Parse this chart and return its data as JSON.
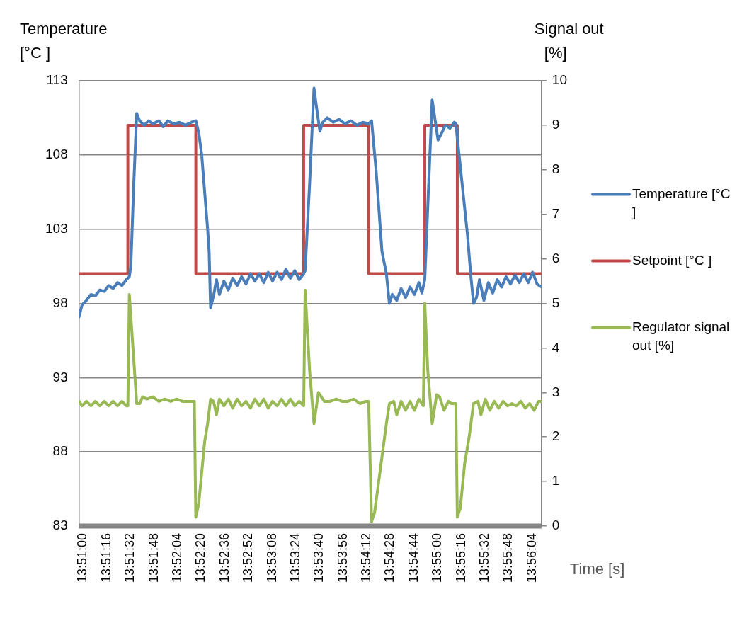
{
  "chart_data": {
    "type": "line",
    "xlabel": "Time [s]",
    "ylabel": "Temperature [°C ]",
    "y2label": "Signal out [%]",
    "xlim": [
      13.84944,
      13.93639
    ],
    "xticks": [
      {
        "value": 13.85,
        "label": "13:51:00"
      },
      {
        "value": 13.85444,
        "label": "13:51:16"
      },
      {
        "value": 13.85889,
        "label": "13:51:32"
      },
      {
        "value": 13.86333,
        "label": "13:51:48"
      },
      {
        "value": 13.86778,
        "label": "13:52:04"
      },
      {
        "value": 13.87222,
        "label": "13:52:20"
      },
      {
        "value": 13.87667,
        "label": "13:52:36"
      },
      {
        "value": 13.88111,
        "label": "13:52:52"
      },
      {
        "value": 13.88556,
        "label": "13:53:08"
      },
      {
        "value": 13.89,
        "label": "13:53:24"
      },
      {
        "value": 13.89444,
        "label": "13:53:40"
      },
      {
        "value": 13.89889,
        "label": "13:53:56"
      },
      {
        "value": 13.90333,
        "label": "13:54:12"
      },
      {
        "value": 13.90778,
        "label": "13:54:28"
      },
      {
        "value": 13.91222,
        "label": "13:54:44"
      },
      {
        "value": 13.91667,
        "label": "13:55:00"
      },
      {
        "value": 13.92111,
        "label": "13:55:16"
      },
      {
        "value": 13.92556,
        "label": "13:55:32"
      },
      {
        "value": 13.93,
        "label": "13:55:48"
      },
      {
        "value": 13.93444,
        "label": "13:56:04"
      }
    ],
    "ylim": [
      83,
      113
    ],
    "yticks": [
      83,
      88,
      93,
      98,
      103,
      108,
      113
    ],
    "y2lim": [
      0,
      10
    ],
    "y2ticks": [
      0,
      1,
      2,
      3,
      4,
      5,
      6,
      7,
      8,
      9,
      10
    ],
    "grid": "y",
    "legend": "right",
    "marker": "none",
    "line_style": "solid",
    "series": [
      {
        "name": "Temperature [°C ]",
        "color": "#4a7ebb",
        "x": [
          13.84944,
          13.85,
          13.85083,
          13.85167,
          13.8525,
          13.85333,
          13.85417,
          13.855,
          13.85583,
          13.85667,
          13.8575,
          13.85833,
          13.85889,
          13.85917,
          13.85972,
          13.86028,
          13.86083,
          13.86167,
          13.8625,
          13.86333,
          13.86444,
          13.86528,
          13.86611,
          13.86722,
          13.86833,
          13.86944,
          13.87056,
          13.87139,
          13.87194,
          13.8725,
          13.87361,
          13.87389,
          13.87417,
          13.87472,
          13.87528,
          13.87583,
          13.87667,
          13.8775,
          13.87833,
          13.87917,
          13.88,
          13.88083,
          13.88167,
          13.8825,
          13.88333,
          13.88417,
          13.885,
          13.88583,
          13.88667,
          13.8875,
          13.88833,
          13.88917,
          13.89,
          13.89083,
          13.89167,
          13.89194,
          13.89278,
          13.89361,
          13.89417,
          13.89472,
          13.89528,
          13.89611,
          13.89722,
          13.89833,
          13.89944,
          13.90056,
          13.90167,
          13.90278,
          13.90389,
          13.90444,
          13.90528,
          13.90639,
          13.90722,
          13.90778,
          13.90833,
          13.90917,
          13.91,
          13.91083,
          13.91167,
          13.9125,
          13.91333,
          13.91389,
          13.91444,
          13.91583,
          13.91694,
          13.91778,
          13.91833,
          13.91917,
          13.92,
          13.92028,
          13.9225,
          13.92306,
          13.92361,
          13.92417,
          13.92472,
          13.92556,
          13.92639,
          13.92722,
          13.92806,
          13.92889,
          13.92972,
          13.93056,
          13.93139,
          13.93222,
          13.93306,
          13.93389,
          13.93472,
          13.93556,
          13.93639
        ],
        "values": [
          97.1,
          97.9,
          98.2,
          98.6,
          98.5,
          98.9,
          98.8,
          99.2,
          99.0,
          99.4,
          99.2,
          99.6,
          99.8,
          100.5,
          106,
          110.8,
          110.3,
          110.0,
          110.3,
          110.1,
          110.3,
          109.9,
          110.3,
          110.1,
          110.2,
          110.0,
          110.2,
          110.3,
          109.5,
          108,
          103,
          101.5,
          97.7,
          98.5,
          99.6,
          98.6,
          99.5,
          98.9,
          99.7,
          99.2,
          99.8,
          99.3,
          100.0,
          99.5,
          100.0,
          99.4,
          100.1,
          99.5,
          100.1,
          99.6,
          100.3,
          99.7,
          100.2,
          99.6,
          100.0,
          100.2,
          106,
          112.5,
          111,
          109.6,
          110.2,
          110.5,
          110.2,
          110.4,
          110.1,
          110.3,
          110.0,
          110.2,
          110.1,
          110.3,
          107,
          101.5,
          100,
          98.0,
          98.6,
          98.2,
          99.0,
          98.4,
          99.1,
          98.6,
          99.4,
          98.7,
          99.6,
          111.7,
          109.0,
          109.6,
          110.0,
          109.8,
          110.2,
          110.1,
          102.5,
          100,
          98.0,
          98.4,
          99.6,
          98.2,
          99.4,
          98.7,
          99.6,
          99.1,
          99.8,
          99.3,
          99.9,
          99.4,
          100.0,
          99.4,
          100.1,
          99.3,
          99.1
        ]
      },
      {
        "name": "Setpoint [°C ]",
        "color": "#be4b48",
        "x": [
          13.84944,
          13.85861,
          13.85861,
          13.87139,
          13.87139,
          13.89167,
          13.89167,
          13.90389,
          13.90389,
          13.91444,
          13.91444,
          13.92056,
          13.92056,
          13.93639
        ],
        "values": [
          100,
          100,
          110,
          110,
          100,
          100,
          110,
          110,
          100,
          100,
          110,
          110,
          100,
          100
        ]
      },
      {
        "name": "Regulator signal out [%]",
        "color": "#98b954",
        "axis": "y2",
        "x": [
          13.84944,
          13.85,
          13.85083,
          13.85167,
          13.8525,
          13.85333,
          13.85417,
          13.855,
          13.85583,
          13.85667,
          13.8575,
          13.85833,
          13.85861,
          13.85889,
          13.86028,
          13.86083,
          13.86139,
          13.86222,
          13.86333,
          13.86444,
          13.86556,
          13.86667,
          13.86778,
          13.86889,
          13.87,
          13.87111,
          13.87139,
          13.87194,
          13.87306,
          13.87361,
          13.87417,
          13.87472,
          13.87528,
          13.87583,
          13.87667,
          13.8775,
          13.87833,
          13.87917,
          13.88,
          13.88083,
          13.88167,
          13.8825,
          13.88333,
          13.88417,
          13.885,
          13.88583,
          13.88667,
          13.8875,
          13.88833,
          13.88917,
          13.89,
          13.89083,
          13.89167,
          13.89194,
          13.89278,
          13.89361,
          13.89444,
          13.895,
          13.89556,
          13.89667,
          13.89778,
          13.89889,
          13.9,
          13.90111,
          13.90222,
          13.90333,
          13.90389,
          13.90444,
          13.905,
          13.90667,
          13.90722,
          13.90778,
          13.90861,
          13.90917,
          13.91,
          13.91083,
          13.91167,
          13.9125,
          13.91333,
          13.91417,
          13.91444,
          13.915,
          13.91583,
          13.91667,
          13.91722,
          13.91806,
          13.91889,
          13.91944,
          13.92028,
          13.92056,
          13.92111,
          13.92194,
          13.92278,
          13.92361,
          13.92444,
          13.925,
          13.92583,
          13.92667,
          13.9275,
          13.92833,
          13.92917,
          13.93,
          13.93083,
          13.93167,
          13.9325,
          13.93333,
          13.93417,
          13.935,
          13.93583,
          13.93639
        ],
        "values": [
          2.8,
          2.7,
          2.8,
          2.7,
          2.8,
          2.7,
          2.8,
          2.7,
          2.8,
          2.7,
          2.8,
          2.7,
          2.7,
          5.2,
          2.75,
          2.75,
          2.9,
          2.85,
          2.9,
          2.8,
          2.85,
          2.8,
          2.85,
          2.8,
          2.8,
          2.8,
          0.2,
          0.5,
          1.9,
          2.3,
          2.85,
          2.8,
          2.5,
          2.85,
          2.7,
          2.85,
          2.65,
          2.85,
          2.7,
          2.8,
          2.65,
          2.85,
          2.7,
          2.85,
          2.65,
          2.8,
          2.7,
          2.85,
          2.7,
          2.85,
          2.7,
          2.8,
          2.7,
          5.3,
          3.5,
          2.3,
          3.0,
          2.9,
          2.8,
          2.8,
          2.85,
          2.8,
          2.8,
          2.85,
          2.75,
          2.8,
          2.8,
          0.1,
          0.3,
          1.8,
          2.3,
          2.75,
          2.8,
          2.5,
          2.8,
          2.6,
          2.8,
          2.6,
          2.85,
          2.7,
          5.0,
          3.5,
          2.3,
          2.95,
          2.9,
          2.6,
          2.8,
          2.75,
          2.75,
          0.2,
          0.4,
          1.4,
          2.0,
          2.75,
          2.8,
          2.5,
          2.85,
          2.6,
          2.8,
          2.65,
          2.8,
          2.7,
          2.75,
          2.7,
          2.8,
          2.65,
          2.75,
          2.6,
          2.8,
          2.8
        ]
      }
    ]
  }
}
